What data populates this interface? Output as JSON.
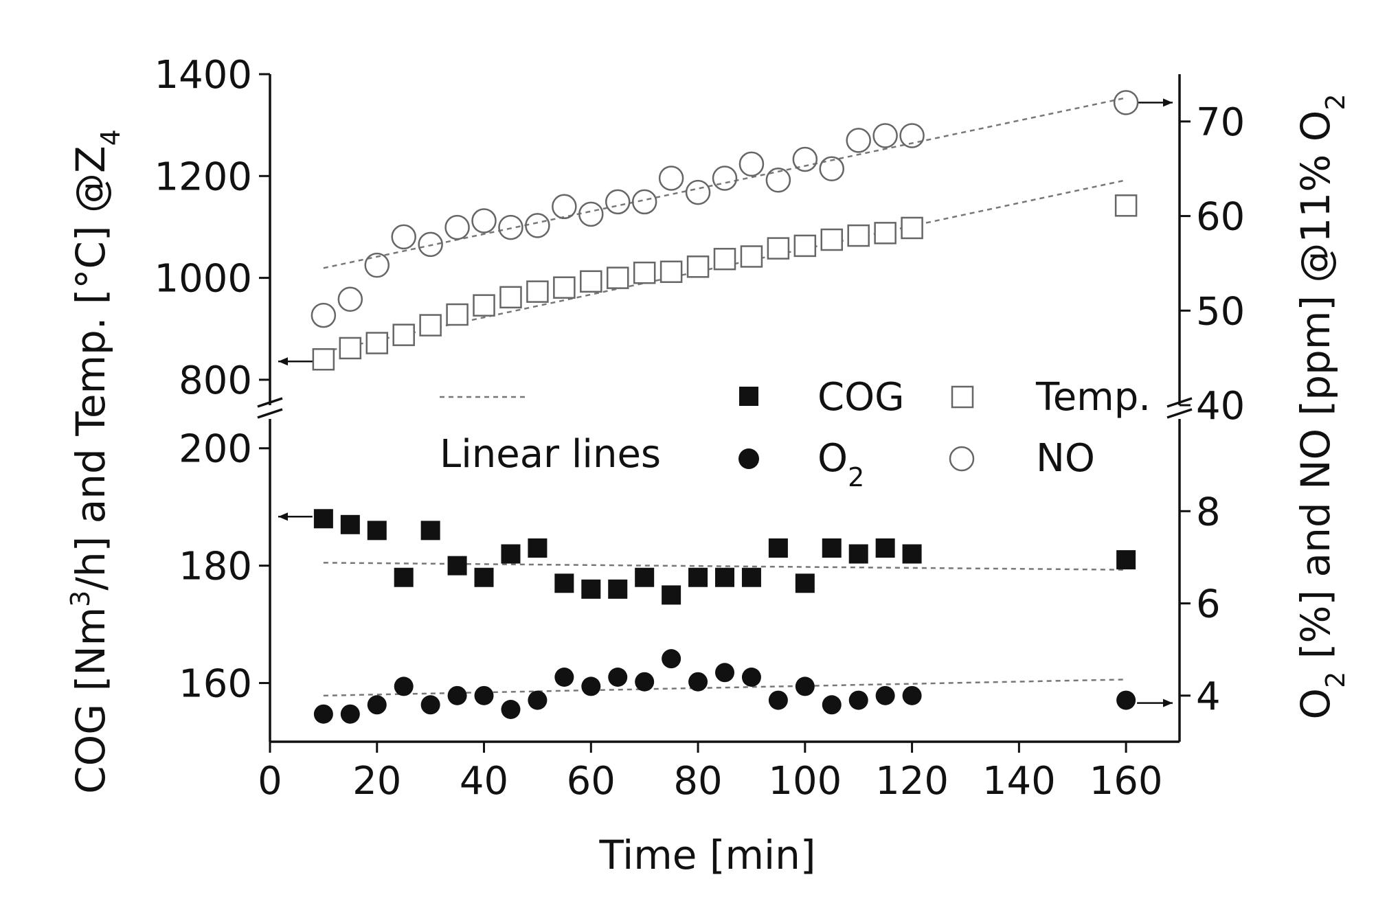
{
  "chart_data": {
    "type": "scatter",
    "x_axis": {
      "label": "Time [min]",
      "range": [
        0,
        170
      ],
      "ticks": [
        "0",
        "20",
        "40",
        "60",
        "80",
        "100",
        "120",
        "140",
        "160"
      ]
    },
    "upper_panel": {
      "left_axis": {
        "label_main": "and Temp. [°C] @Z",
        "label_sub": "4",
        "range": [
          750,
          1400
        ],
        "ticks": [
          "800",
          "1000",
          "1200",
          "1400"
        ]
      },
      "right_axis": {
        "label_main": " [ppm] @11% O",
        "label_sub": "2",
        "range": [
          40,
          75
        ],
        "ticks": [
          "40",
          "50",
          "60",
          "70"
        ]
      },
      "series": [
        {
          "name": "Temp.",
          "axis": "left",
          "marker": "open-square",
          "x": [
            10,
            15,
            20,
            25,
            30,
            35,
            40,
            45,
            50,
            55,
            60,
            65,
            70,
            75,
            80,
            85,
            90,
            95,
            100,
            105,
            110,
            115,
            120,
            160
          ],
          "values": [
            840,
            862,
            872,
            888,
            907,
            928,
            946,
            962,
            973,
            981,
            993,
            1000,
            1010,
            1012,
            1022,
            1037,
            1042,
            1058,
            1063,
            1075,
            1083,
            1088,
            1098,
            1142
          ]
        },
        {
          "name": "NO",
          "axis": "right",
          "marker": "open-circle",
          "x": [
            10,
            15,
            20,
            25,
            30,
            35,
            40,
            45,
            50,
            55,
            60,
            65,
            70,
            75,
            80,
            85,
            90,
            95,
            100,
            105,
            110,
            115,
            120,
            160
          ],
          "values": [
            49.5,
            51.2,
            54.8,
            57.8,
            57.0,
            58.8,
            59.5,
            58.8,
            59.0,
            61.0,
            60.2,
            61.5,
            61.5,
            64.0,
            62.5,
            64.0,
            65.5,
            63.8,
            66.0,
            65.0,
            68.0,
            68.5,
            68.5,
            72.0
          ]
        }
      ],
      "fit_lines": [
        {
          "of": "Temp.",
          "axis": "left",
          "x": [
            10,
            160
          ],
          "y": [
            855,
            1192
          ]
        },
        {
          "of": "NO",
          "axis": "right",
          "x": [
            10,
            160
          ],
          "y": [
            54.5,
            72.5
          ]
        }
      ]
    },
    "lower_panel": {
      "left_axis": {
        "label_main": "COG [Nm",
        "label_sup": "3",
        "label_tail": "/h]",
        "range": [
          150,
          205
        ],
        "ticks": [
          "160",
          "180",
          "200"
        ]
      },
      "right_axis": {
        "label_o": "O",
        "label_sub": "2",
        "label_main": " [%] and NO",
        "range": [
          3,
          10
        ],
        "ticks": [
          "4",
          "6",
          "8"
        ]
      },
      "series": [
        {
          "name": "COG",
          "axis": "left",
          "marker": "filled-square",
          "x": [
            10,
            15,
            20,
            25,
            30,
            35,
            40,
            45,
            50,
            55,
            60,
            65,
            70,
            75,
            80,
            85,
            90,
            95,
            100,
            105,
            110,
            115,
            120,
            160
          ],
          "values": [
            188,
            187,
            186,
            178,
            186,
            180,
            178,
            182,
            183,
            177,
            176,
            176,
            178,
            175,
            178,
            178,
            178,
            183,
            177,
            183,
            182,
            183,
            182,
            181
          ]
        },
        {
          "name": "O2",
          "axis": "right",
          "marker": "filled-circle",
          "x": [
            10,
            15,
            20,
            25,
            30,
            35,
            40,
            45,
            50,
            55,
            60,
            65,
            70,
            75,
            80,
            85,
            90,
            95,
            100,
            105,
            110,
            115,
            120,
            160
          ],
          "values": [
            3.6,
            3.6,
            3.8,
            4.2,
            3.8,
            4.0,
            4.0,
            3.7,
            3.9,
            4.4,
            4.2,
            4.4,
            4.3,
            4.8,
            4.3,
            4.5,
            4.4,
            3.9,
            4.2,
            3.8,
            3.9,
            4.0,
            4.0,
            3.9
          ]
        }
      ],
      "fit_lines": [
        {
          "of": "COG",
          "axis": "left",
          "x": [
            10,
            160
          ],
          "y": [
            180.5,
            179.3
          ]
        },
        {
          "of": "O2",
          "axis": "right",
          "x": [
            10,
            160
          ],
          "y": [
            4.0,
            4.35
          ]
        }
      ]
    },
    "legend": {
      "placement": "center",
      "linear_label": "Linear lines",
      "items": [
        {
          "marker": "filled-square",
          "label": "COG"
        },
        {
          "marker": "open-square",
          "label": "Temp."
        },
        {
          "marker": "filled-circle",
          "label_main": "O",
          "label_sub": "2"
        },
        {
          "marker": "open-circle",
          "label": "NO"
        }
      ]
    },
    "axis_break": true
  }
}
